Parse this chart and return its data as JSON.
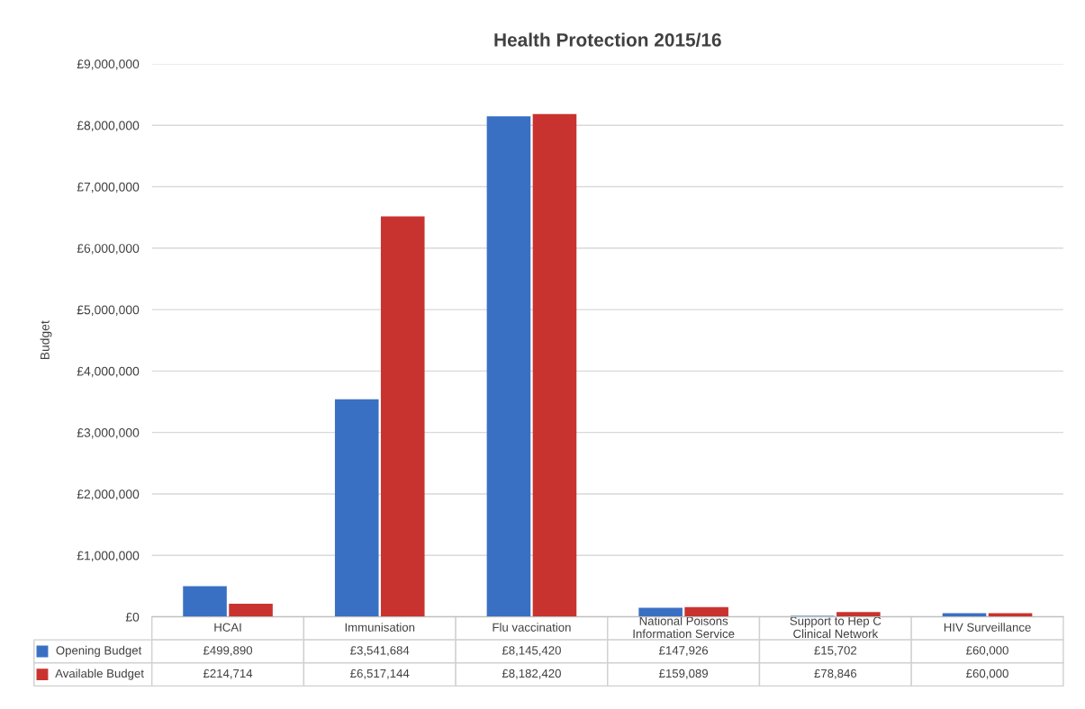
{
  "chart_data": {
    "type": "bar",
    "title": "Health Protection 2015/16",
    "ylabel": "Budget",
    "categories": [
      "HCAI",
      "Immunisation",
      "Flu vaccination",
      "National Poisons Information Service",
      "Support to Hep C Clinical Network",
      "HIV Surveillance"
    ],
    "series": [
      {
        "name": "Opening Budget",
        "color": "#3a70c4",
        "values": [
          499890,
          3541684,
          8145420,
          147926,
          15702,
          60000
        ],
        "value_labels": [
          "£499,890",
          "£3,541,684",
          "£8,145,420",
          "£147,926",
          "£15,702",
          "£60,000"
        ]
      },
      {
        "name": "Available Budget",
        "color": "#c9332f",
        "values": [
          214714,
          6517144,
          8182420,
          159089,
          78846,
          60000
        ],
        "value_labels": [
          "£214,714",
          "£6,517,144",
          "£8,182,420",
          "£159,089",
          "£78,846",
          "£60,000"
        ]
      }
    ],
    "ylim": [
      0,
      9000000
    ],
    "yticks": [
      {
        "value": 0,
        "label": "£0"
      },
      {
        "value": 1000000,
        "label": "£1,000,000"
      },
      {
        "value": 2000000,
        "label": "£2,000,000"
      },
      {
        "value": 3000000,
        "label": "£3,000,000"
      },
      {
        "value": 4000000,
        "label": "£4,000,000"
      },
      {
        "value": 5000000,
        "label": "£5,000,000"
      },
      {
        "value": 6000000,
        "label": "£6,000,000"
      },
      {
        "value": 7000000,
        "label": "£7,000,000"
      },
      {
        "value": 8000000,
        "label": "£8,000,000"
      },
      {
        "value": 9000000,
        "label": "£9,000,000"
      }
    ],
    "grid": "y",
    "legend": "bottom"
  }
}
